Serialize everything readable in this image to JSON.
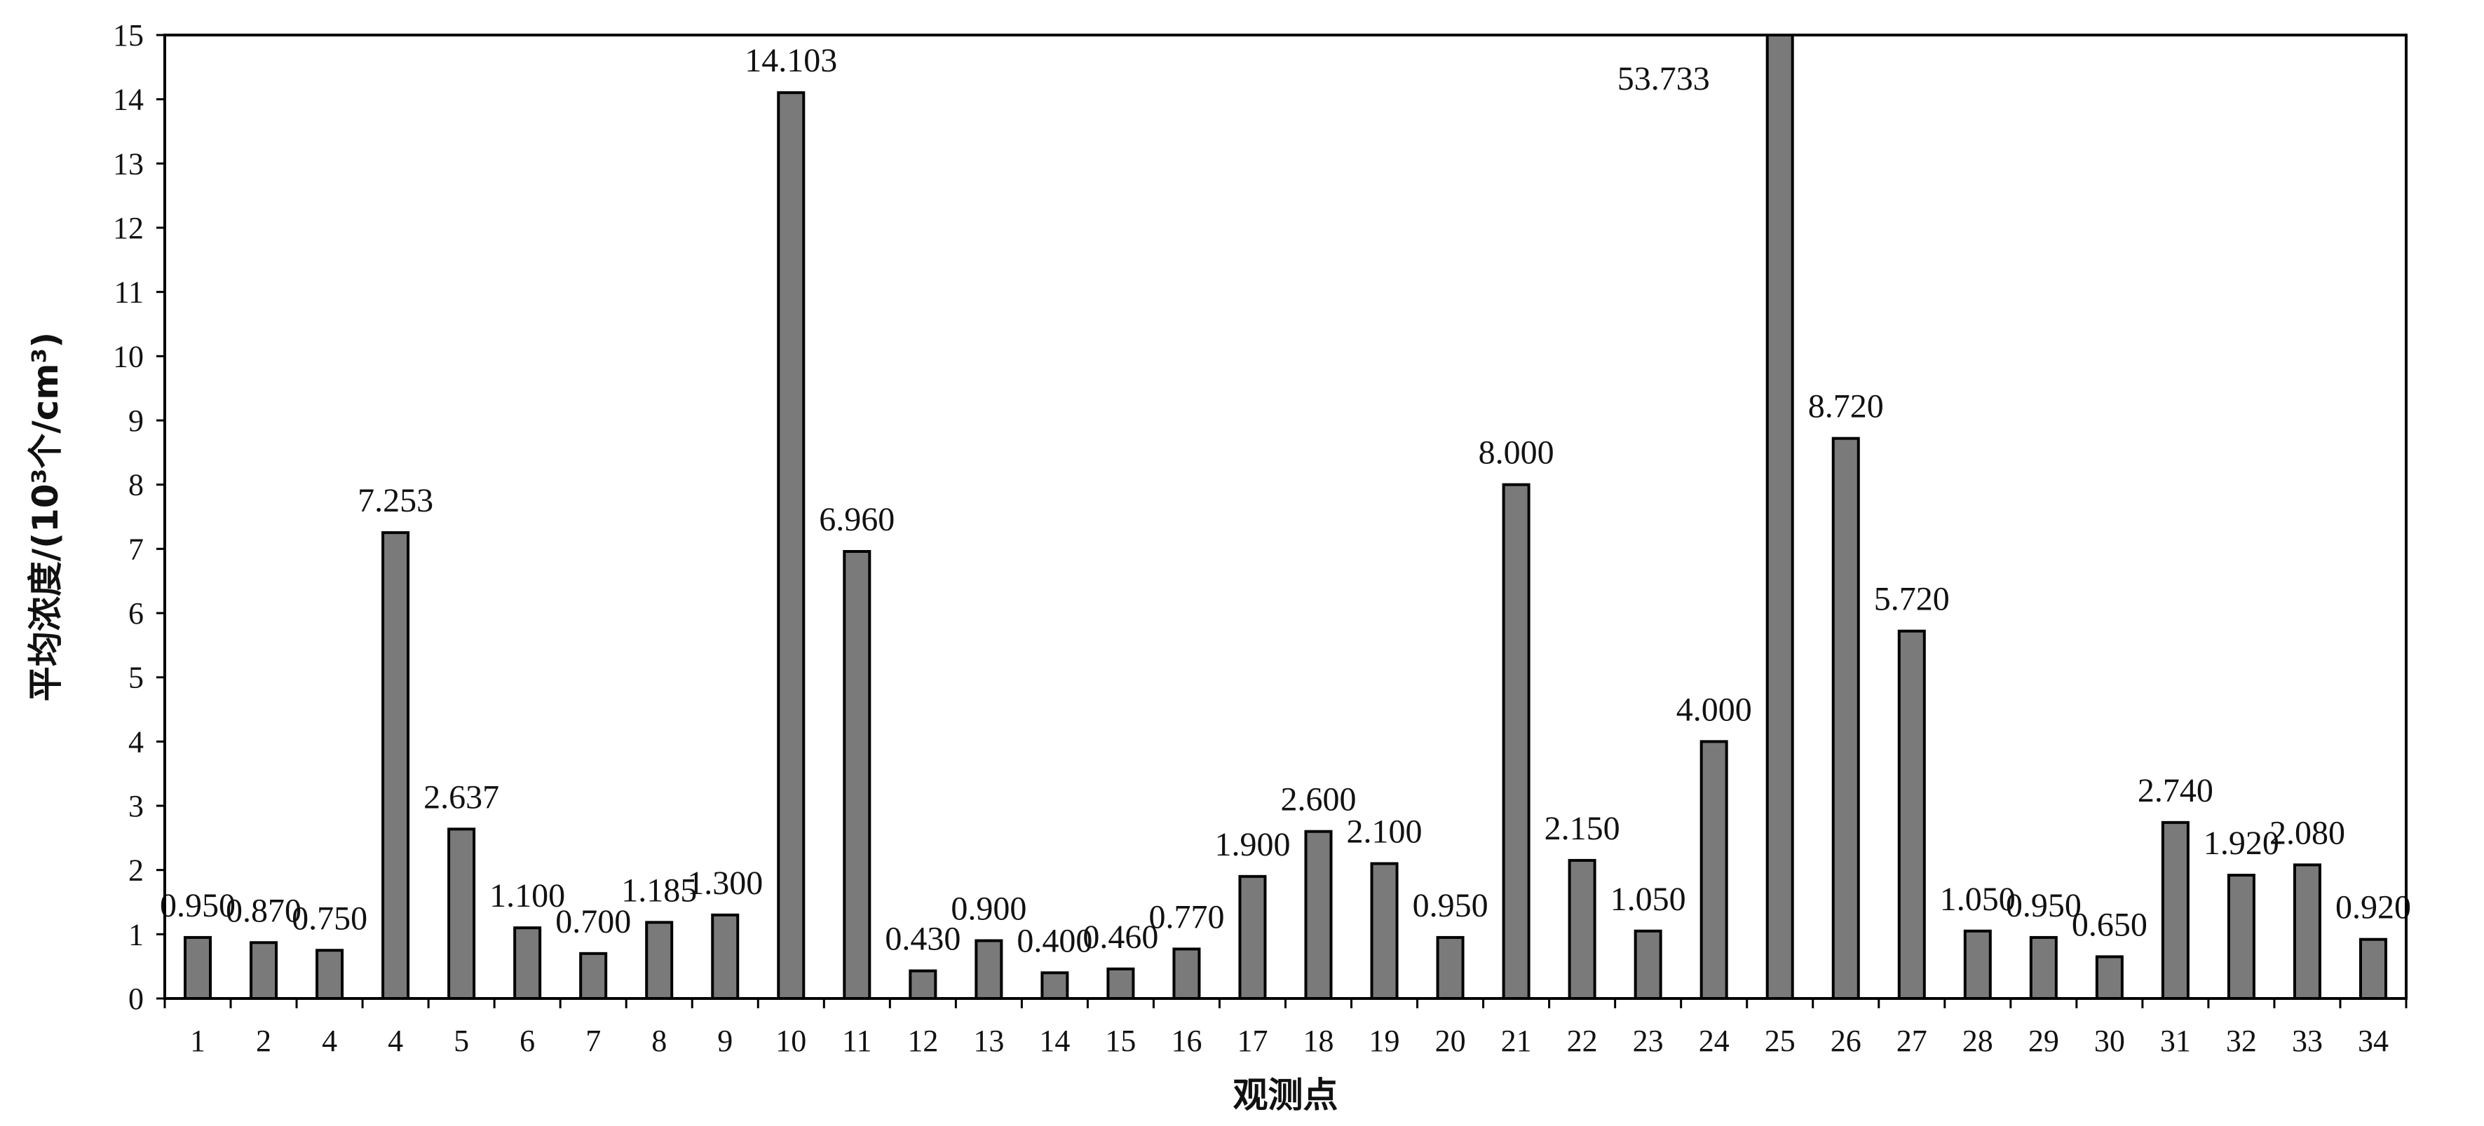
{
  "chart_data": {
    "type": "bar",
    "categories": [
      "1",
      "2",
      "4",
      "4",
      "5",
      "6",
      "7",
      "8",
      "9",
      "10",
      "11",
      "12",
      "13",
      "14",
      "15",
      "16",
      "17",
      "18",
      "19",
      "20",
      "21",
      "22",
      "23",
      "24",
      "25",
      "26",
      "27",
      "28",
      "29",
      "30",
      "31",
      "32",
      "33",
      "34"
    ],
    "values": [
      0.95,
      0.87,
      0.75,
      7.253,
      2.637,
      1.1,
      0.7,
      1.185,
      1.3,
      14.103,
      6.96,
      0.43,
      0.9,
      0.4,
      0.46,
      0.77,
      1.9,
      2.6,
      2.1,
      0.95,
      8.0,
      2.15,
      1.05,
      4.0,
      53.733,
      8.72,
      5.72,
      1.05,
      0.95,
      0.65,
      2.74,
      1.92,
      2.08,
      0.92
    ],
    "data_labels": [
      "0.950",
      "0.870",
      "0.750",
      "7.253",
      "2.637",
      "1.100",
      "0.700",
      "1.185",
      "1.300",
      "14.103",
      "6.960",
      "0.430",
      "0.900",
      "0.400",
      "0.460",
      "0.770",
      "1.900",
      "2.600",
      "2.100",
      "0.950",
      "8.000",
      "2.150",
      "1.050",
      "4.000",
      "53.733",
      "8.720",
      "5.720",
      "1.050",
      "0.950",
      "0.650",
      "2.740",
      "1.920",
      "2.080",
      "0.920"
    ],
    "xlabel": "观测点",
    "ylabel": "平均浓度/(10³个/cm³)",
    "ylim": [
      0,
      15
    ],
    "yticks": [
      "0",
      "1",
      "2",
      "3",
      "4",
      "5",
      "6",
      "7",
      "8",
      "9",
      "10",
      "11",
      "12",
      "13",
      "14",
      "15"
    ],
    "grid": false,
    "bar_color": "#7a7a7a"
  }
}
